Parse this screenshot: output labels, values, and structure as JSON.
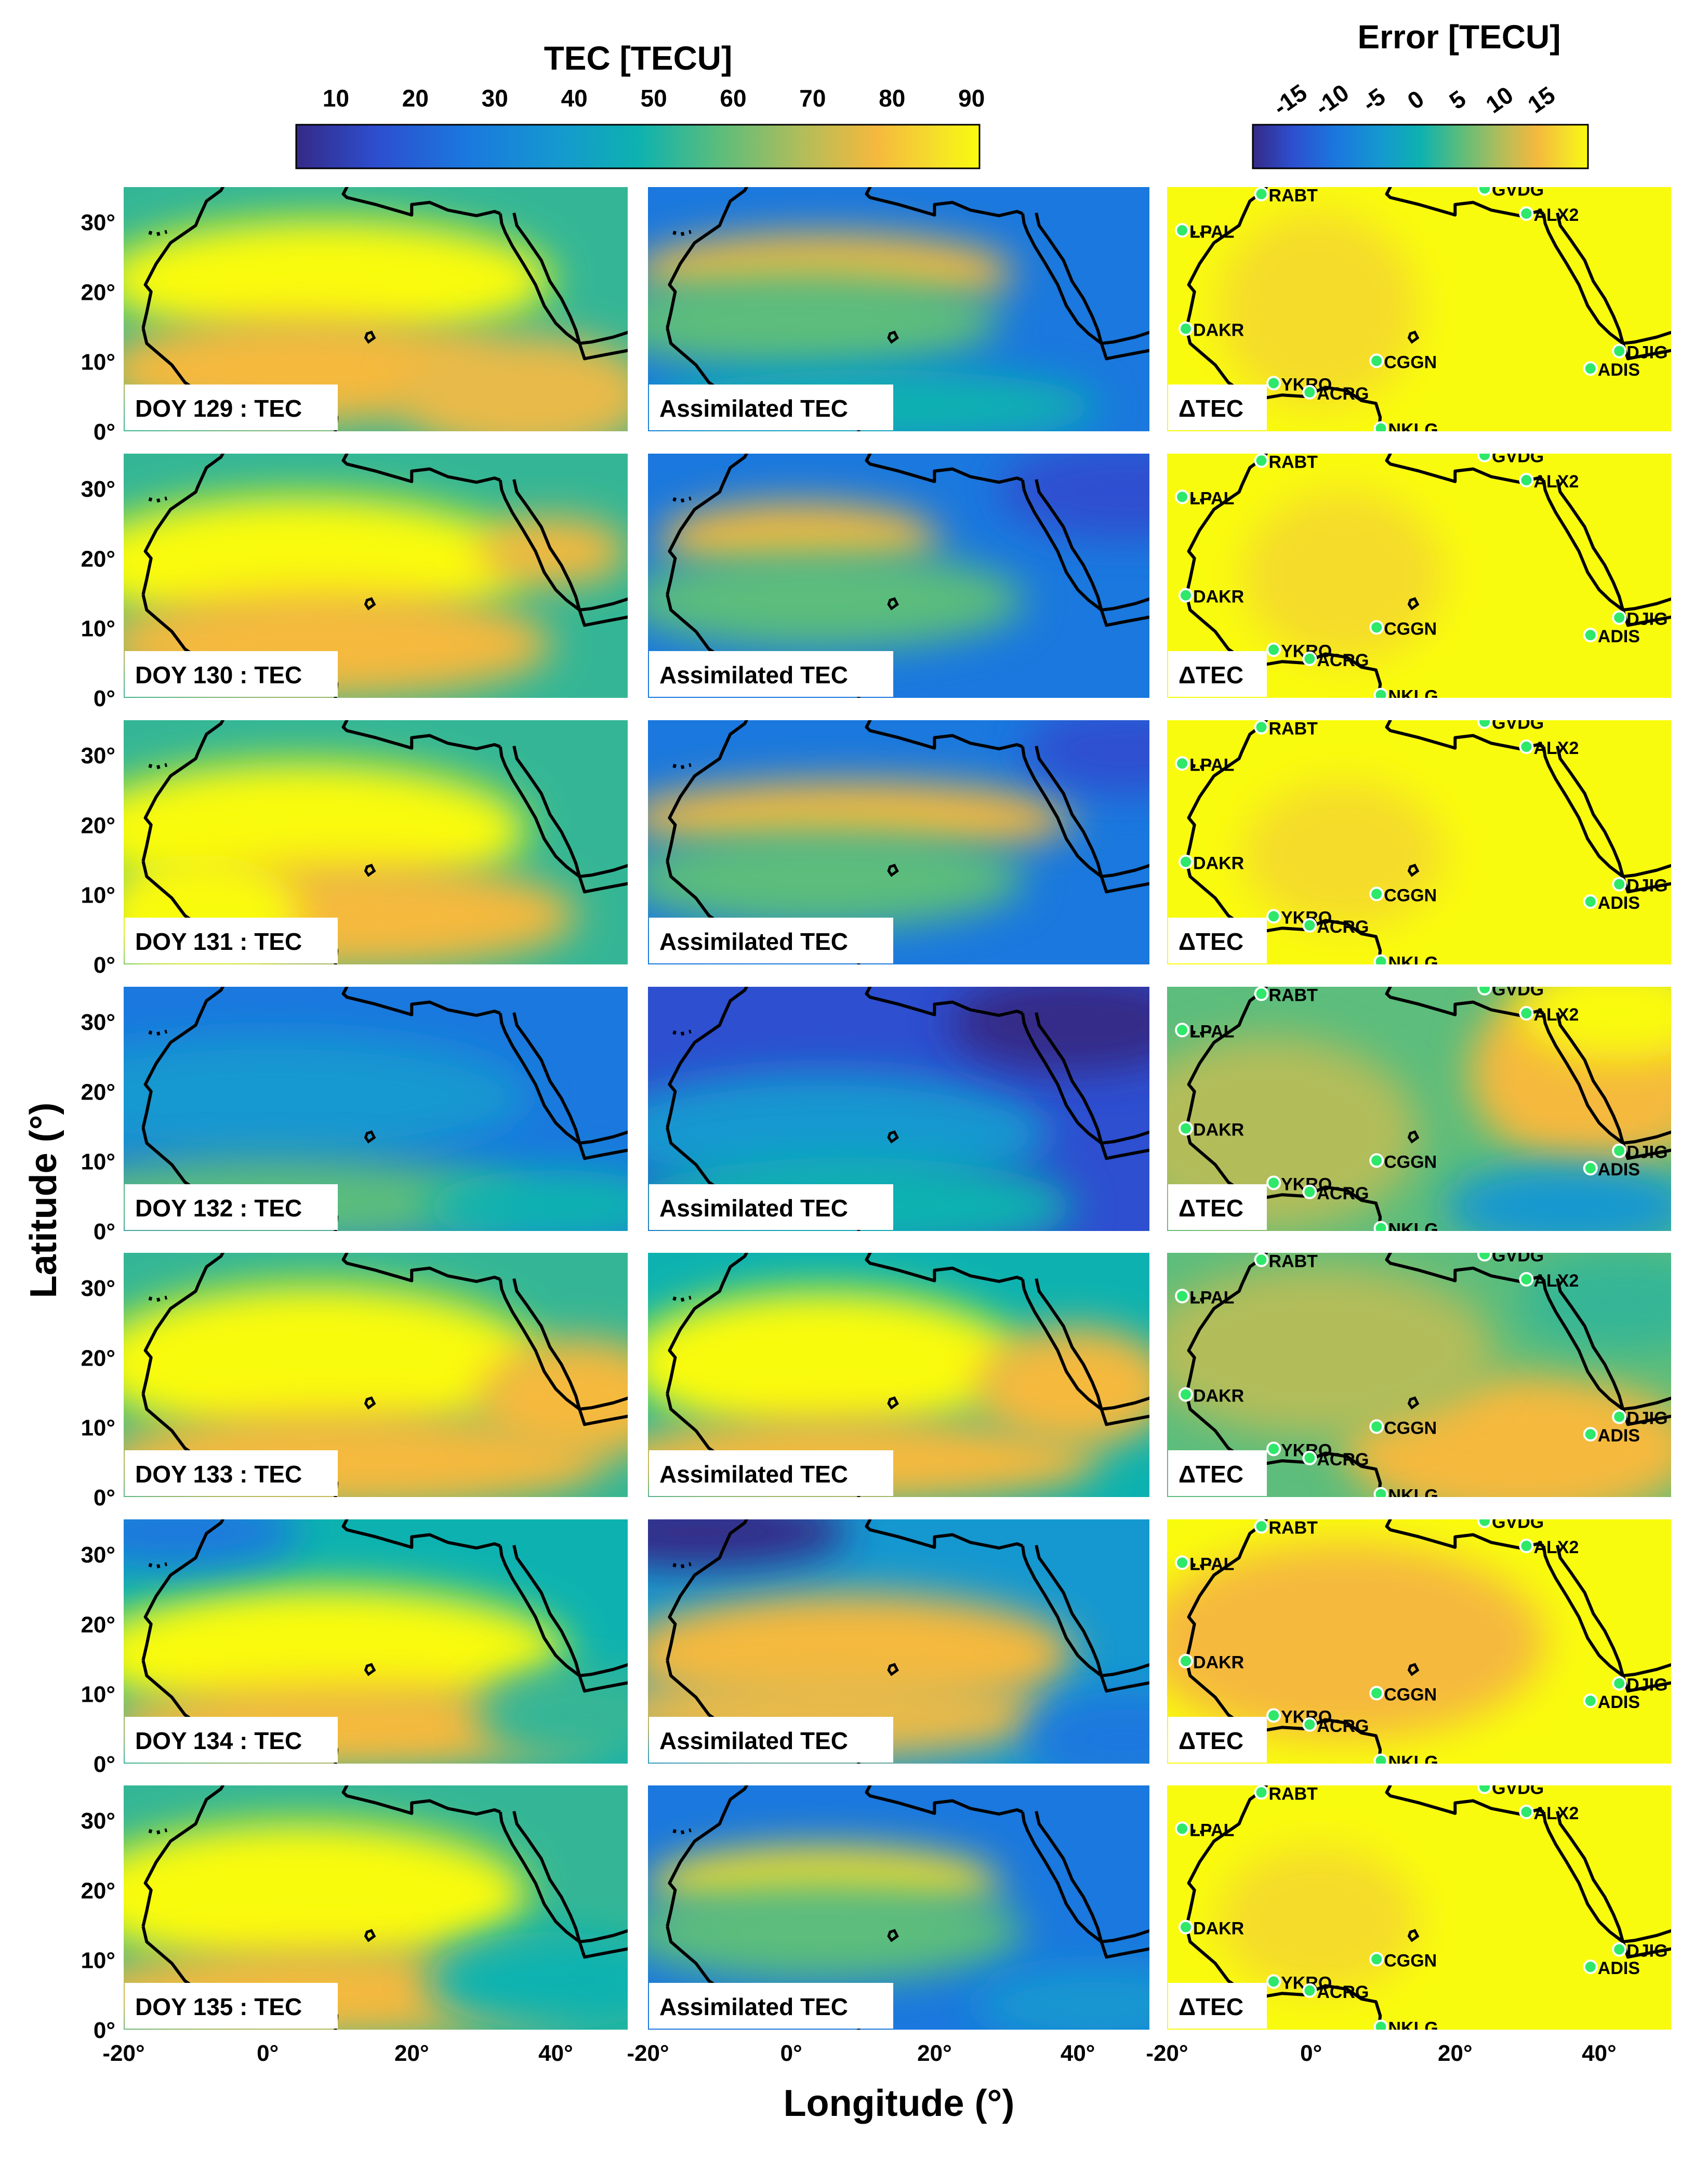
{
  "colorbars": {
    "tec": {
      "title": "TEC [TECU]",
      "ticks": [
        "10",
        "20",
        "30",
        "40",
        "50",
        "60",
        "70",
        "80",
        "90"
      ],
      "range": [
        5,
        91
      ],
      "tick_values": [
        10,
        20,
        30,
        40,
        50,
        60,
        70,
        80,
        90
      ]
    },
    "error": {
      "title": "Error [TECU]",
      "ticks": [
        "-15",
        "-10",
        "-5",
        "0",
        "5",
        "10",
        "15"
      ],
      "range": [
        -20,
        20
      ],
      "tick_values": [
        -15,
        -10,
        -5,
        0,
        5,
        10,
        15
      ]
    }
  },
  "colormap": "parula",
  "axes": {
    "xlabel": "Longitude (°)",
    "ylabel": "Latitude (°)",
    "xticks": [
      "-20°",
      "0°",
      "20°",
      "40°"
    ],
    "xtick_values": [
      -20,
      0,
      20,
      40
    ],
    "yticks": [
      "0°",
      "10°",
      "20°",
      "30°"
    ],
    "ytick_values": [
      0,
      10,
      20,
      30
    ],
    "xlim": [
      -20,
      50
    ],
    "ylim": [
      0,
      35
    ]
  },
  "column_labels": {
    "assimilated": "Assimilated TEC",
    "delta": "ΔTEC"
  },
  "rows": [
    {
      "label": "DOY 129 : TEC"
    },
    {
      "label": "DOY 130 : TEC"
    },
    {
      "label": "DOY 131 : TEC"
    },
    {
      "label": "DOY 132 : TEC"
    },
    {
      "label": "DOY 133 : TEC"
    },
    {
      "label": "DOY 134 : TEC"
    },
    {
      "label": "DOY 135 : TEC"
    }
  ],
  "stations": [
    {
      "name": "RABT",
      "lon": -6.9,
      "lat": 34.0
    },
    {
      "name": "GVDG",
      "lon": 24.1,
      "lat": 34.8
    },
    {
      "name": "LPAL",
      "lon": -17.9,
      "lat": 28.8
    },
    {
      "name": "ALX2",
      "lon": 29.9,
      "lat": 31.2
    },
    {
      "name": "DAKR",
      "lon": -17.4,
      "lat": 14.7
    },
    {
      "name": "CGGN",
      "lon": 9.1,
      "lat": 10.1
    },
    {
      "name": "DJIG",
      "lon": 42.8,
      "lat": 11.5
    },
    {
      "name": "ADIS",
      "lon": 38.8,
      "lat": 9.0
    },
    {
      "name": "YKRO",
      "lon": -5.2,
      "lat": 6.9
    },
    {
      "name": "ACRG",
      "lon": -0.2,
      "lat": 5.6
    },
    {
      "name": "NKLG",
      "lon": 9.7,
      "lat": 0.4
    }
  ],
  "chart_data": [
    {
      "type": "heatmap",
      "panel": "DOY 129 : TEC",
      "units": "TECU"
    },
    {
      "type": "heatmap",
      "panel": "DOY 129 Assimilated TEC",
      "units": "TECU"
    },
    {
      "type": "heatmap",
      "panel": "DOY 129 ΔTEC",
      "units": "TECU"
    },
    {
      "type": "heatmap",
      "panel": "DOY 130 : TEC",
      "units": "TECU"
    },
    {
      "type": "heatmap",
      "panel": "DOY 130 Assimilated TEC",
      "units": "TECU"
    },
    {
      "type": "heatmap",
      "panel": "DOY 130 ΔTEC",
      "units": "TECU"
    },
    {
      "type": "heatmap",
      "panel": "DOY 131 : TEC",
      "units": "TECU"
    },
    {
      "type": "heatmap",
      "panel": "DOY 131 Assimilated TEC",
      "units": "TECU"
    },
    {
      "type": "heatmap",
      "panel": "DOY 131 ΔTEC",
      "units": "TECU"
    },
    {
      "type": "heatmap",
      "panel": "DOY 132 : TEC",
      "units": "TECU"
    },
    {
      "type": "heatmap",
      "panel": "DOY 132 Assimilated TEC",
      "units": "TECU"
    },
    {
      "type": "heatmap",
      "panel": "DOY 132 ΔTEC",
      "units": "TECU"
    },
    {
      "type": "heatmap",
      "panel": "DOY 133 : TEC",
      "units": "TECU"
    },
    {
      "type": "heatmap",
      "panel": "DOY 133 Assimilated TEC",
      "units": "TECU"
    },
    {
      "type": "heatmap",
      "panel": "DOY 133 ΔTEC",
      "units": "TECU"
    },
    {
      "type": "heatmap",
      "panel": "DOY 134 : TEC",
      "units": "TECU"
    },
    {
      "type": "heatmap",
      "panel": "DOY 134 Assimilated TEC",
      "units": "TECU"
    },
    {
      "type": "heatmap",
      "panel": "DOY 134 ΔTEC",
      "units": "TECU"
    },
    {
      "type": "heatmap",
      "panel": "DOY 135 : TEC",
      "units": "TECU"
    },
    {
      "type": "heatmap",
      "panel": "DOY 135 Assimilated TEC",
      "units": "TECU"
    },
    {
      "type": "heatmap",
      "panel": "DOY 135 ΔTEC",
      "units": "TECU"
    }
  ]
}
